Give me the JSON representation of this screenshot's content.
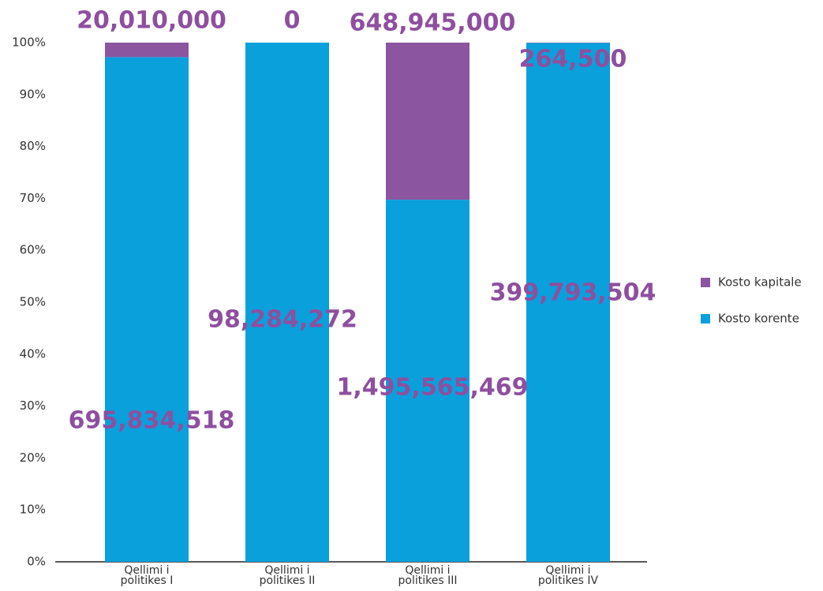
{
  "chart_data": {
    "type": "bar",
    "stacking": "percent",
    "categories": [
      "Qellimi i politikes I",
      "Qellimi i politikes II",
      "Qellimi i politikes III",
      "Qellimi i politikes IV"
    ],
    "series": [
      {
        "name": "Kosto korente",
        "color": "#0aa0dc",
        "values": [
          695834518,
          98284272,
          1495565469,
          399793504
        ],
        "value_labels": [
          "695,834,518",
          "98,284,272",
          "1,495,565,469",
          "399,793,504"
        ]
      },
      {
        "name": "Kosto kapitale",
        "color": "#8b55a0",
        "values": [
          20010000,
          0,
          648945000,
          264500
        ],
        "value_labels": [
          "20,010,000",
          "0",
          "648,945,000",
          "264,500"
        ]
      }
    ],
    "ylim": [
      0,
      100
    ],
    "yticks": [
      {
        "value": 0,
        "label": "0%"
      },
      {
        "value": 10,
        "label": "10%"
      },
      {
        "value": 20,
        "label": "20%"
      },
      {
        "value": 30,
        "label": "30%"
      },
      {
        "value": 40,
        "label": "40%"
      },
      {
        "value": 50,
        "label": "50%"
      },
      {
        "value": 60,
        "label": "60%"
      },
      {
        "value": 70,
        "label": "70%"
      },
      {
        "value": 80,
        "label": "80%"
      },
      {
        "value": 90,
        "label": "90%"
      },
      {
        "value": 100,
        "label": "100%"
      }
    ],
    "legend": "right"
  }
}
